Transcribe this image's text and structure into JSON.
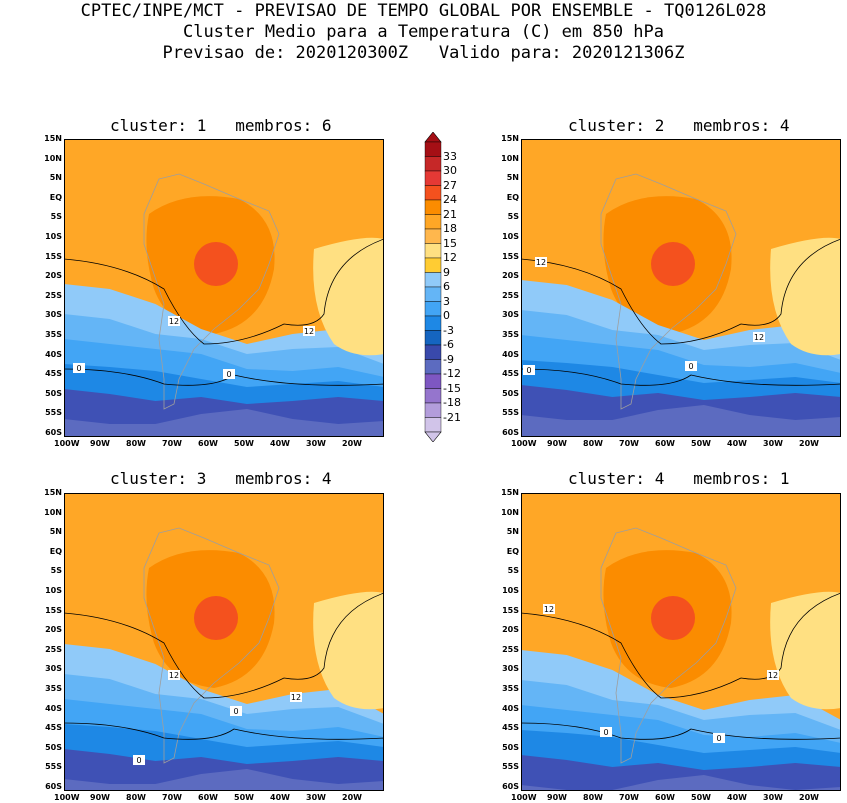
{
  "header": {
    "line1": "CPTEC/INPE/MCT - PREVISAO DE TEMPO GLOBAL POR ENSEMBLE - TQ0126L028",
    "line2": "Cluster Medio para a Temperatura (C) em 850 hPa",
    "line3": "Previsao de: 2020120300Z   Valido para: 2020121306Z"
  },
  "panels": [
    {
      "title": "cluster: 1   membros: 6",
      "contour_labels": [
        "12",
        "12",
        "0",
        "0"
      ]
    },
    {
      "title": "cluster: 2   membros: 4",
      "contour_labels": [
        "12",
        "12",
        "0",
        "0"
      ]
    },
    {
      "title": "cluster: 3   membros: 4",
      "contour_labels": [
        "12",
        "12",
        "0",
        "0"
      ]
    },
    {
      "title": "cluster: 4   membros: 1",
      "contour_labels": [
        "12",
        "12",
        "0",
        "0"
      ]
    }
  ],
  "lat_ticks": [
    "15N",
    "10N",
    "5N",
    "EQ",
    "5S",
    "10S",
    "15S",
    "20S",
    "25S",
    "30S",
    "35S",
    "40S",
    "45S",
    "50S",
    "55S",
    "60S"
  ],
  "lon_ticks": [
    "100W",
    "90W",
    "80W",
    "70W",
    "60W",
    "50W",
    "40W",
    "30W",
    "20W"
  ],
  "colorbar": {
    "labels": [
      "33",
      "30",
      "27",
      "24",
      "21",
      "18",
      "15",
      "12",
      "9",
      "6",
      "3",
      "0",
      "-3",
      "-6",
      "-9",
      "-12",
      "-15",
      "-18",
      "-21"
    ],
    "colors": [
      "#a50f15",
      "#c62828",
      "#e53935",
      "#f4511e",
      "#fb8c00",
      "#ffa726",
      "#ffb74d",
      "#ffe082",
      "#ffcc33",
      "#90caf9",
      "#64b5f6",
      "#42a5f5",
      "#1e88e5",
      "#1565c0",
      "#3949ab",
      "#5c6bc0",
      "#7e57c2",
      "#9575cd",
      "#b39ddb",
      "#d1c4e9"
    ]
  }
}
